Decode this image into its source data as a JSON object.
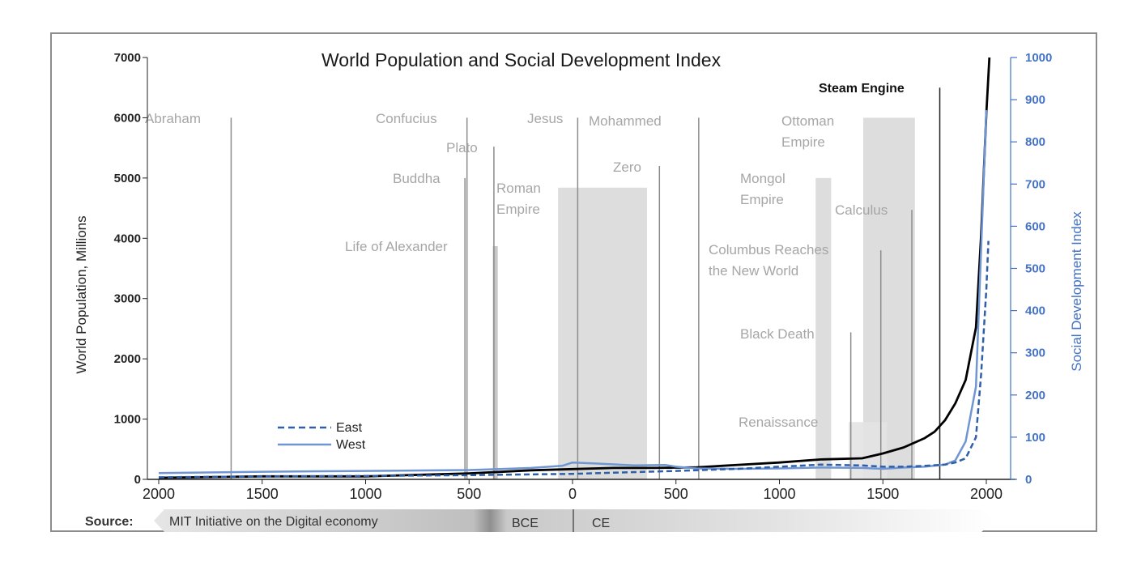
{
  "chart_data": {
    "type": "line",
    "title": "World Population and Social Development Index",
    "ylabel": "World Population, Millions",
    "y2label": "Social Development Index",
    "xlim": [
      -2000,
      2060
    ],
    "ylim": [
      0,
      7000
    ],
    "y2lim": [
      0,
      1000
    ],
    "x_ticks": [
      "2000",
      "1500",
      "1000",
      "500",
      "0",
      "500",
      "1000",
      "1500",
      "2000"
    ],
    "x_tick_values": [
      -2000,
      -1500,
      -1000,
      -500,
      0,
      500,
      1000,
      1500,
      2000
    ],
    "y_ticks": [
      0,
      1000,
      2000,
      3000,
      4000,
      5000,
      6000,
      7000
    ],
    "y2_ticks": [
      0,
      100,
      200,
      300,
      400,
      500,
      600,
      700,
      800,
      900,
      1000
    ],
    "series": [
      {
        "name": "World Population",
        "axis": "left",
        "color": "#000000",
        "x": [
          -2000,
          -1500,
          -1000,
          -500,
          -200,
          0,
          200,
          400,
          600,
          800,
          1000,
          1200,
          1400,
          1500,
          1600,
          1700,
          1750,
          1800,
          1850,
          1900,
          1950,
          1975,
          2000,
          2015
        ],
        "values": [
          27,
          50,
          50,
          100,
          150,
          170,
          190,
          190,
          200,
          240,
          280,
          330,
          350,
          430,
          530,
          680,
          790,
          980,
          1260,
          1650,
          2520,
          4060,
          6070,
          7000
        ]
      },
      {
        "name": "West",
        "axis": "right",
        "color": "#6f96d3",
        "x": [
          -2000,
          -1500,
          -1000,
          -500,
          -200,
          -50,
          0,
          100,
          300,
          450,
          500,
          600,
          800,
          1000,
          1200,
          1400,
          1500,
          1600,
          1700,
          1800,
          1850,
          1900,
          1950,
          2000
        ],
        "values": [
          15,
          18,
          20,
          22,
          27,
          32,
          40,
          38,
          33,
          34,
          30,
          26,
          25,
          26,
          28,
          27,
          25,
          28,
          30,
          35,
          45,
          90,
          220,
          875
        ]
      },
      {
        "name": "East",
        "axis": "right",
        "color": "#2e5fa8",
        "x": [
          -2000,
          -1500,
          -1000,
          -500,
          0,
          500,
          800,
          1000,
          1200,
          1400,
          1500,
          1600,
          1700,
          1800,
          1850,
          1900,
          1950,
          1975,
          2000,
          2010
        ],
        "values": [
          5,
          7,
          8,
          10,
          13,
          20,
          25,
          30,
          35,
          33,
          30,
          30,
          32,
          35,
          40,
          50,
          100,
          250,
          450,
          565
        ]
      }
    ],
    "legend": {
      "placement": "bottom-left",
      "entries": [
        "East",
        "West"
      ]
    },
    "events": [
      {
        "label": "Abraham",
        "year": -1650
      },
      {
        "label": "Confucius",
        "year": -510
      },
      {
        "label": "Plato",
        "year": -380
      },
      {
        "label": "Buddha",
        "year": -520
      },
      {
        "label": "Life of Alexander",
        "year": -370
      },
      {
        "label": "Jesus",
        "year": 25
      },
      {
        "label": "Mohammed",
        "year": 610
      },
      {
        "label": "Zero",
        "year": 420
      },
      {
        "label": "Roman Empire",
        "start": -70,
        "end": 360
      },
      {
        "label": "Mongol Empire",
        "start": 1175,
        "end": 1250
      },
      {
        "label": "Ottoman Empire",
        "start": 1405,
        "end": 1655
      },
      {
        "label": "Calculus",
        "year": 1640
      },
      {
        "label": "Columbus Reaches the New World",
        "year": 1490
      },
      {
        "label": "Black Death",
        "year": 1345
      },
      {
        "label": "Renaissance",
        "start": 1335,
        "end": 1520
      },
      {
        "label": "Steam Engine",
        "year": 1775
      }
    ]
  },
  "text": {
    "title": "World Population and Social Development Index",
    "ylabel": "World Population, Millions",
    "y2label": "Social Development Index",
    "legend_east": "East",
    "legend_west": "West",
    "source_label": "Source:",
    "source_text": "MIT Initiative on the Digital economy",
    "bce": "BCE",
    "ce": "CE",
    "ev_abraham": "Abraham",
    "ev_confucius": "Confucius",
    "ev_plato": "Plato",
    "ev_buddha": "Buddha",
    "ev_alexander": "Life of Alexander",
    "ev_jesus": "Jesus",
    "ev_mohammed": "Mohammed",
    "ev_zero": "Zero",
    "ev_roman_1": "Roman",
    "ev_roman_2": "Empire",
    "ev_mongol_1": "Mongol",
    "ev_mongol_2": "Empire",
    "ev_ottoman_1": "Ottoman",
    "ev_ottoman_2": "Empire",
    "ev_calculus": "Calculus",
    "ev_columbus_1": "Columbus Reaches",
    "ev_columbus_2": "the New World",
    "ev_black_death": "Black Death",
    "ev_renaissance": "Renaissance",
    "ev_steam": "Steam Engine"
  },
  "colors": {
    "population": "#000000",
    "west": "#6f96d3",
    "east": "#2e5fa8",
    "right_axis": "#4472c4",
    "event_line": "#8c8c8c",
    "event_text": "#a6a6a6",
    "band": "#d9d9d9"
  }
}
